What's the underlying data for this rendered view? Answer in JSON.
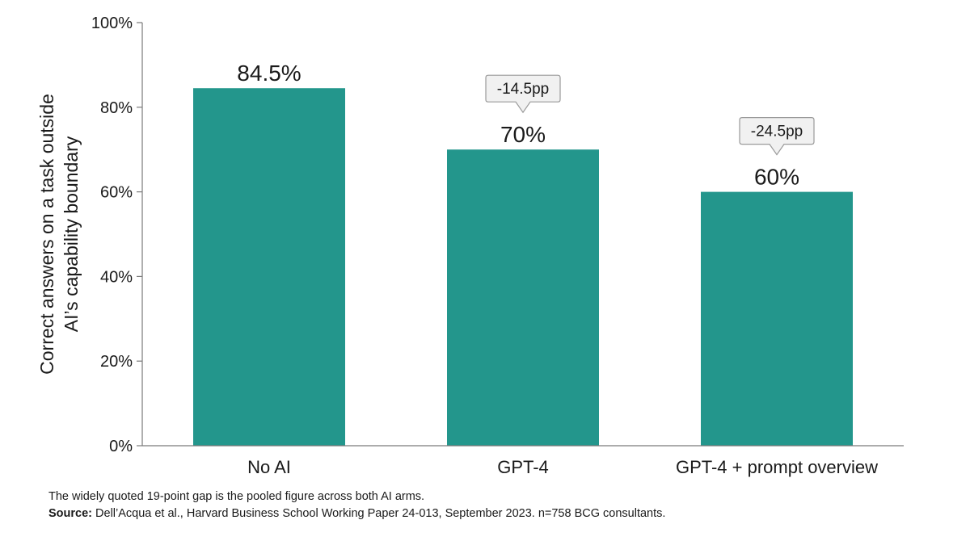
{
  "chart_data": {
    "type": "bar",
    "categories": [
      "No AI",
      "GPT-4",
      "GPT-4 + prompt overview"
    ],
    "values": [
      84.5,
      70,
      60
    ],
    "value_labels": [
      "84.5%",
      "70%",
      "60%"
    ],
    "callouts": [
      null,
      "-14.5pp",
      "-24.5pp"
    ],
    "ylabel_lines": [
      "Correct answers on a task outside",
      "AI’s capability boundary"
    ],
    "ylim": [
      0,
      100
    ],
    "yticks": [
      0,
      20,
      40,
      60,
      80,
      100
    ],
    "ytick_labels": [
      "0%",
      "20%",
      "40%",
      "60%",
      "80%",
      "100%"
    ],
    "bar_color": "#23968c",
    "grid": false
  },
  "footer": {
    "note": "The widely quoted 19-point gap is the pooled figure across both AI arms.",
    "source_label": "Source:",
    "source_text": " Dell’Acqua et al., Harvard Business School Working Paper 24-013, September 2023. n=758 BCG consultants."
  }
}
